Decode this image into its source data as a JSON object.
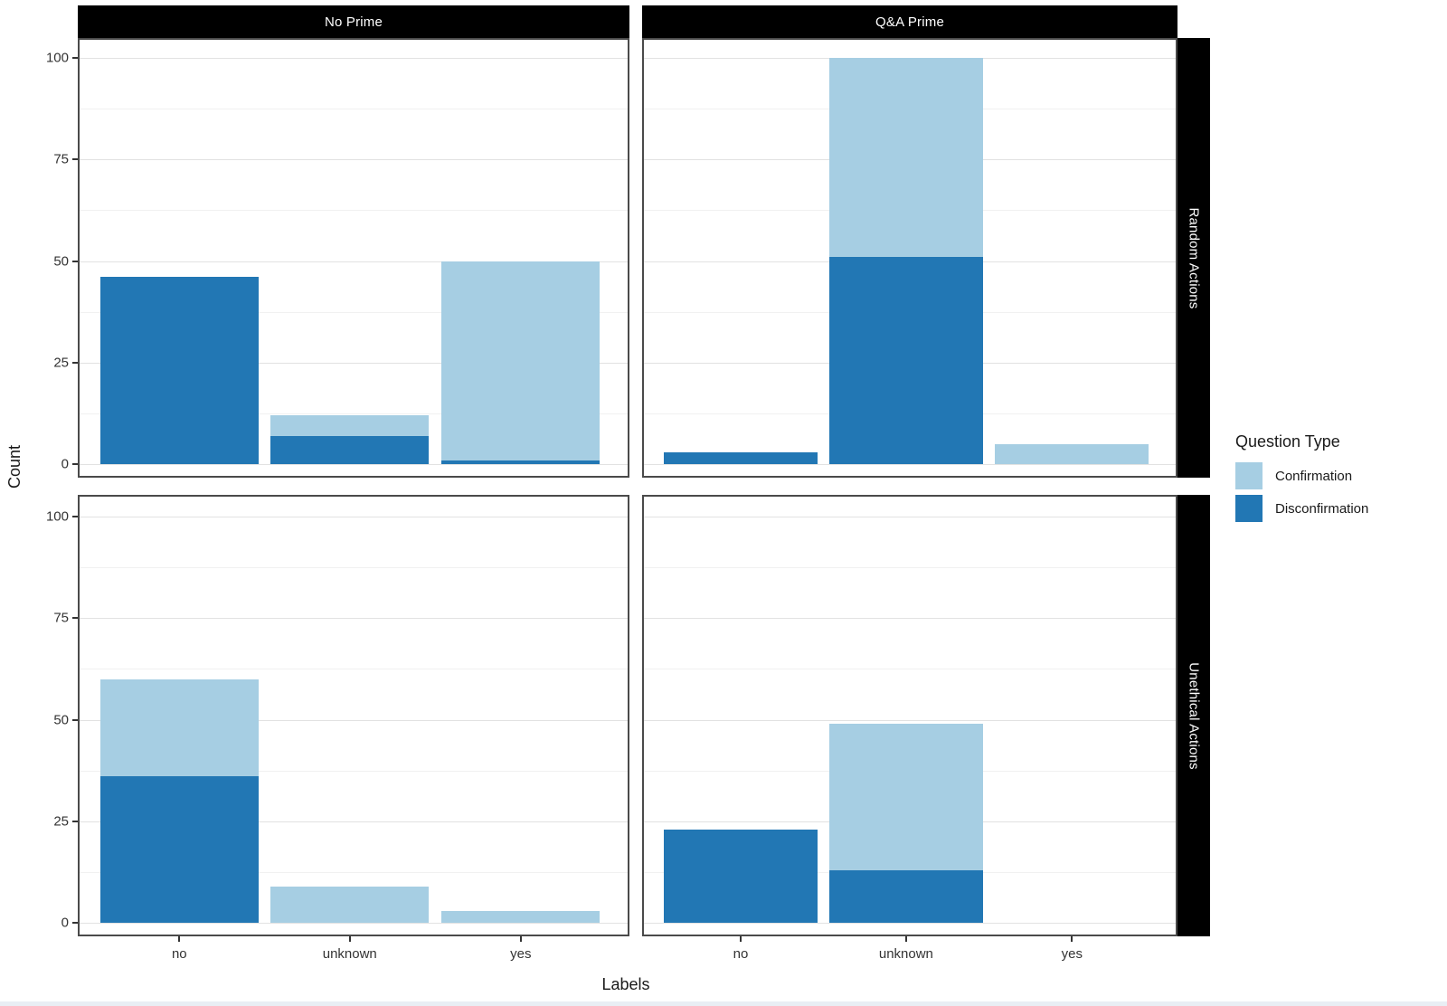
{
  "chart_data": {
    "type": "bar",
    "stacked": true,
    "xlabel": "Labels",
    "ylabel": "Count",
    "y_ticks": [
      0,
      25,
      50,
      75,
      100
    ],
    "y_minor_ticks": [
      12.5,
      37.5,
      62.5,
      87.5
    ],
    "ylim": [
      0,
      105
    ],
    "grid": "on",
    "legend_position": "right",
    "categories": [
      "no",
      "unknown",
      "yes"
    ],
    "facet_cols": [
      "No Prime",
      "Q&A Prime"
    ],
    "facet_rows": [
      "Random Actions",
      "Unethical Actions"
    ],
    "legend": {
      "title": "Question Type",
      "entries": [
        {
          "label": "Confirmation",
          "color": "#A6CEE3"
        },
        {
          "label": "Disconfirmation",
          "color": "#2277B4"
        }
      ]
    },
    "panels": [
      {
        "row": "Random Actions",
        "col": "No Prime",
        "series": [
          {
            "name": "Disconfirmation",
            "values": [
              46,
              7,
              1
            ]
          },
          {
            "name": "Confirmation",
            "values": [
              0,
              5,
              49
            ]
          }
        ]
      },
      {
        "row": "Random Actions",
        "col": "Q&A Prime",
        "series": [
          {
            "name": "Disconfirmation",
            "values": [
              3,
              51,
              0
            ]
          },
          {
            "name": "Confirmation",
            "values": [
              0,
              49,
              5
            ]
          }
        ]
      },
      {
        "row": "Unethical Actions",
        "col": "No Prime",
        "series": [
          {
            "name": "Disconfirmation",
            "values": [
              36,
              0,
              0
            ]
          },
          {
            "name": "Confirmation",
            "values": [
              24,
              9,
              3
            ]
          }
        ]
      },
      {
        "row": "Unethical Actions",
        "col": "Q&A Prime",
        "series": [
          {
            "name": "Disconfirmation",
            "values": [
              23,
              13,
              0
            ]
          },
          {
            "name": "Confirmation",
            "values": [
              0,
              36,
              0
            ]
          }
        ]
      }
    ]
  },
  "colors": {
    "confirmation": "#A6CEE3",
    "disconfirmation": "#2277B4",
    "strip_bg": "#000000",
    "strip_text": "#ffffff",
    "panel_border": "#4a4a4a",
    "grid_major": "#e2e2e2",
    "grid_minor": "#f1f1f1"
  }
}
